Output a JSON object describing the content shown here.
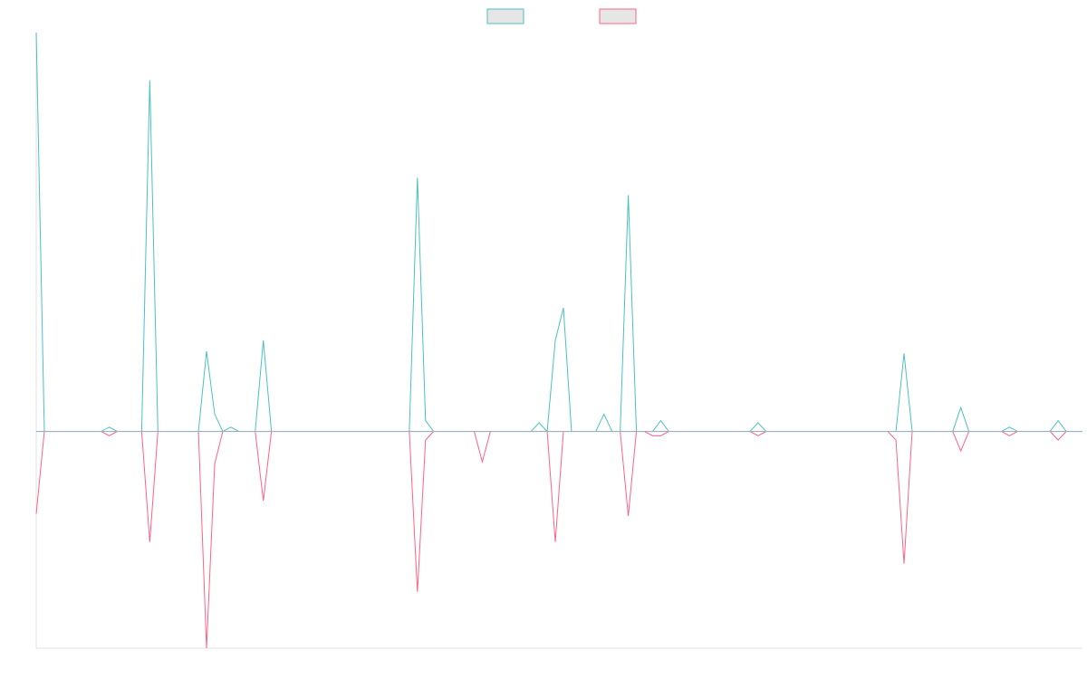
{
  "chart_data": {
    "type": "line",
    "title": "",
    "xlabel": "",
    "ylabel": "",
    "legend_position": "top-center",
    "grid": false,
    "x_count": 130,
    "ylim": [
      -100,
      184
    ],
    "zero_baseline": true,
    "colors": {
      "background": "#ffffff",
      "axis": "#e0e0e0",
      "legend_fill": "#e6e6e6",
      "baseline": "#9ab0c0"
    },
    "series": [
      {
        "color": "#4bc0c0",
        "values": [
          {
            "x": 0,
            "y": 184
          },
          {
            "x": 9,
            "y": 2
          },
          {
            "x": 14,
            "y": 162
          },
          {
            "x": 21,
            "y": 37
          },
          {
            "x": 22,
            "y": 8
          },
          {
            "x": 24,
            "y": 2
          },
          {
            "x": 28,
            "y": 42
          },
          {
            "x": 47,
            "y": 117
          },
          {
            "x": 48,
            "y": 5
          },
          {
            "x": 62,
            "y": 4
          },
          {
            "x": 64,
            "y": 42
          },
          {
            "x": 65,
            "y": 57
          },
          {
            "x": 70,
            "y": 8
          },
          {
            "x": 73,
            "y": 109
          },
          {
            "x": 77,
            "y": 5
          },
          {
            "x": 89,
            "y": 4
          },
          {
            "x": 107,
            "y": 36
          },
          {
            "x": 114,
            "y": 11
          },
          {
            "x": 120,
            "y": 2
          },
          {
            "x": 126,
            "y": 5
          }
        ]
      },
      {
        "color": "#ff6384",
        "values": [
          {
            "x": 0,
            "y": -38
          },
          {
            "x": 9,
            "y": -2
          },
          {
            "x": 14,
            "y": -51
          },
          {
            "x": 21,
            "y": -100
          },
          {
            "x": 22,
            "y": -15
          },
          {
            "x": 28,
            "y": -32
          },
          {
            "x": 47,
            "y": -74
          },
          {
            "x": 48,
            "y": -4
          },
          {
            "x": 55,
            "y": -14
          },
          {
            "x": 64,
            "y": -51
          },
          {
            "x": 73,
            "y": -39
          },
          {
            "x": 76,
            "y": -2
          },
          {
            "x": 77,
            "y": -2
          },
          {
            "x": 89,
            "y": -2
          },
          {
            "x": 106,
            "y": -4
          },
          {
            "x": 107,
            "y": -61
          },
          {
            "x": 114,
            "y": -9
          },
          {
            "x": 120,
            "y": -2
          },
          {
            "x": 126,
            "y": -4
          }
        ]
      }
    ]
  }
}
